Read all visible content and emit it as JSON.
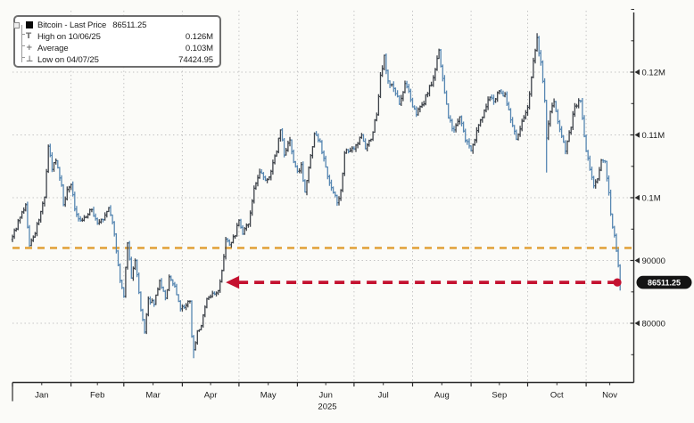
{
  "page": {
    "title": "Bitcoin - Last Price chart 2025"
  },
  "legend": {
    "rows": [
      {
        "icon": "filled-square",
        "label": "Bitcoin - Last Price",
        "value": "86511.25"
      },
      {
        "icon": "high-marker",
        "glyph": "T",
        "label": "High on 10/06/25",
        "value": "0.126M"
      },
      {
        "icon": "average-marker",
        "glyph": "+",
        "label": "Average",
        "value": "0.103M"
      },
      {
        "icon": "low-marker",
        "glyph": "⊥",
        "label": "Low on 04/07/25",
        "value": "74424.95"
      }
    ]
  },
  "colors": {
    "up_bar": "#3e434a",
    "down_bar": "#5787b2",
    "reference_line": "#e2a43e",
    "arrow": "#c41230",
    "grid": "#c2c2c2",
    "axis": "#2b2b2b",
    "text": "#1b1b1b",
    "background": "#fbfbf8",
    "label_bg": "#141414",
    "label_text": "#ffffff"
  },
  "chart_data": {
    "type": "ohlc",
    "title": "Bitcoin - Last Price",
    "last_price": 86511.25,
    "high_annotation": {
      "date": "10/06/25",
      "label": "0.126M"
    },
    "average_annotation": {
      "label": "0.103M"
    },
    "low_annotation": {
      "date": "04/07/25",
      "value": 74424.95
    },
    "x_axis": {
      "month_labels": [
        "Jan",
        "Feb",
        "Mar",
        "Apr",
        "May",
        "Jun",
        "Jul",
        "Aug",
        "Sep",
        "Oct",
        "Nov"
      ],
      "month_start_days": [
        0,
        31,
        59,
        90,
        120,
        151,
        181,
        212,
        243,
        273,
        304
      ],
      "axis_end_day": 329,
      "year_label": "2025"
    },
    "y_axis": {
      "major_ticks": [
        {
          "price": 120000,
          "label": "0.12M"
        },
        {
          "price": 110000,
          "label": "0.11M"
        },
        {
          "price": 100000,
          "label": "0.1M"
        },
        {
          "price": 90000,
          "label": "90000"
        },
        {
          "price": 80000,
          "label": "80000"
        }
      ],
      "minor_tick_prices": [
        130000,
        125000,
        115000,
        105000,
        95000,
        85000,
        75000
      ],
      "ylim": [
        70500,
        130500
      ]
    },
    "series": {
      "name": "Bitcoin - Last Price",
      "anchors": [
        [
          0,
          93800
        ],
        [
          4,
          96900
        ],
        [
          7,
          98900
        ],
        [
          9,
          92400
        ],
        [
          12,
          94300
        ],
        [
          15,
          97800
        ],
        [
          17,
          100100
        ],
        [
          19,
          108200
        ],
        [
          21,
          104500
        ],
        [
          23,
          105900
        ],
        [
          26,
          102000
        ],
        [
          27,
          98900
        ],
        [
          29,
          101300
        ],
        [
          31,
          102100
        ],
        [
          33,
          98200
        ],
        [
          36,
          96400
        ],
        [
          39,
          96900
        ],
        [
          42,
          98100
        ],
        [
          45,
          95900
        ],
        [
          48,
          96500
        ],
        [
          51,
          98400
        ],
        [
          53,
          96100
        ],
        [
          55,
          91500
        ],
        [
          57,
          86800
        ],
        [
          59,
          84300
        ],
        [
          61,
          92800
        ],
        [
          63,
          87200
        ],
        [
          65,
          90000
        ],
        [
          68,
          82100
        ],
        [
          70,
          78600
        ],
        [
          72,
          83900
        ],
        [
          75,
          83000
        ],
        [
          78,
          86800
        ],
        [
          81,
          84000
        ],
        [
          83,
          87400
        ],
        [
          86,
          85900
        ],
        [
          89,
          82300
        ],
        [
          91,
          82500
        ],
        [
          94,
          83500
        ],
        [
          95,
          77900
        ],
        [
          96,
          75800
        ],
        [
          97,
          76900
        ],
        [
          98,
          78800
        ],
        [
          100,
          79600
        ],
        [
          103,
          83900
        ],
        [
          106,
          84800
        ],
        [
          109,
          85200
        ],
        [
          111,
          88400
        ],
        [
          113,
          93400
        ],
        [
          115,
          92500
        ],
        [
          118,
          93900
        ],
        [
          120,
          96400
        ],
        [
          122,
          94200
        ],
        [
          125,
          95800
        ],
        [
          128,
          101500
        ],
        [
          131,
          104100
        ],
        [
          134,
          102800
        ],
        [
          137,
          104200
        ],
        [
          140,
          107300
        ],
        [
          142,
          110800
        ],
        [
          144,
          106800
        ],
        [
          147,
          109200
        ],
        [
          149,
          105700
        ],
        [
          151,
          104200
        ],
        [
          153,
          105300
        ],
        [
          155,
          100900
        ],
        [
          157,
          104800
        ],
        [
          160,
          110200
        ],
        [
          163,
          108900
        ],
        [
          166,
          104900
        ],
        [
          169,
          101600
        ],
        [
          172,
          99200
        ],
        [
          174,
          101200
        ],
        [
          176,
          107100
        ],
        [
          179,
          107500
        ],
        [
          182,
          108400
        ],
        [
          185,
          110000
        ],
        [
          187,
          107800
        ],
        [
          190,
          109300
        ],
        [
          193,
          113200
        ],
        [
          195,
          119500
        ],
        [
          197,
          122700
        ],
        [
          199,
          118600
        ],
        [
          202,
          117400
        ],
        [
          205,
          114900
        ],
        [
          208,
          118200
        ],
        [
          211,
          115600
        ],
        [
          214,
          113200
        ],
        [
          217,
          114800
        ],
        [
          220,
          116600
        ],
        [
          223,
          119100
        ],
        [
          226,
          123500
        ],
        [
          228,
          119000
        ],
        [
          231,
          112700
        ],
        [
          234,
          110800
        ],
        [
          237,
          112900
        ],
        [
          240,
          109100
        ],
        [
          243,
          107500
        ],
        [
          246,
          110700
        ],
        [
          249,
          112800
        ],
        [
          252,
          115600
        ],
        [
          255,
          115300
        ],
        [
          258,
          117000
        ],
        [
          261,
          116500
        ],
        [
          264,
          112400
        ],
        [
          267,
          109300
        ],
        [
          270,
          112200
        ],
        [
          273,
          114400
        ],
        [
          276,
          121800
        ],
        [
          278,
          125500
        ],
        [
          280,
          121600
        ],
        [
          282,
          115500
        ],
        [
          283,
          109500
        ],
        [
          285,
          113700
        ],
        [
          287,
          115300
        ],
        [
          290,
          110900
        ],
        [
          293,
          107400
        ],
        [
          296,
          111200
        ],
        [
          298,
          114600
        ],
        [
          301,
          115400
        ],
        [
          304,
          107400
        ],
        [
          306,
          104500
        ],
        [
          308,
          101900
        ],
        [
          310,
          103000
        ],
        [
          312,
          106000
        ],
        [
          314,
          105800
        ],
        [
          316,
          100800
        ],
        [
          317,
          97400
        ],
        [
          318,
          95300
        ],
        [
          319,
          94000
        ],
        [
          320,
          91500
        ],
        [
          321,
          89200
        ],
        [
          322,
          86511.25
        ]
      ],
      "forced_extremes": {
        "96": {
          "low": 74424.95
        },
        "278": {
          "high": 126200
        },
        "283": {
          "low": 104000
        },
        "322": {
          "low": 85200
        }
      }
    },
    "annotations": {
      "reference_line": {
        "price": 92000,
        "style": "dashed"
      },
      "arrow": {
        "price": 86511.25,
        "from_day": 113,
        "to_day": 320,
        "style": "dashed",
        "head": "left",
        "tail": "dot"
      },
      "last_price_label": "86511.25"
    }
  }
}
